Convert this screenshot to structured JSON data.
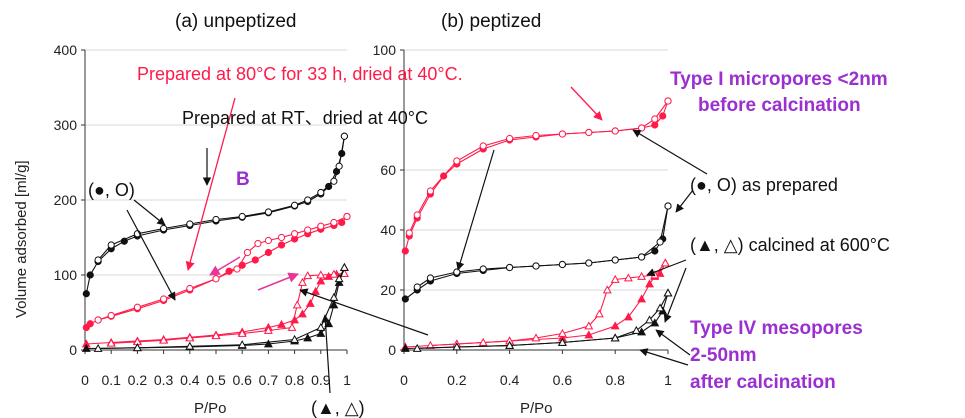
{
  "chart_data": [
    {
      "type": "line",
      "panel_title": "(a) unpeptized",
      "xlabel": "P/Po",
      "ylabel": "Volume adsorbed [ml/g]",
      "xlim": [
        0,
        1
      ],
      "ylim": [
        0,
        400
      ],
      "x_ticks": [
        "0",
        "0.1",
        "0.2",
        "0.3",
        "0.4",
        "0.5",
        "0.6",
        "0.7",
        "0.8",
        "0.9",
        "1"
      ],
      "y_ticks": [
        "0",
        "100",
        "200",
        "300",
        "400"
      ],
      "series": [
        {
          "color": "#111111",
          "branch": "adsorption",
          "marker": "filled-circle",
          "x": [
            0.005,
            0.02,
            0.05,
            0.1,
            0.15,
            0.2,
            0.3,
            0.4,
            0.5,
            0.6,
            0.7,
            0.8,
            0.85,
            0.9,
            0.93,
            0.96,
            0.98,
            0.99
          ],
          "y": [
            75,
            100,
            118,
            135,
            145,
            152,
            160,
            166,
            172,
            177,
            183,
            192,
            198,
            208,
            218,
            238,
            262,
            285
          ]
        },
        {
          "color": "#111111",
          "branch": "desorption",
          "marker": "open-circle",
          "x": [
            0.99,
            0.97,
            0.95,
            0.9,
            0.85,
            0.8,
            0.7,
            0.6,
            0.5,
            0.4,
            0.3,
            0.2,
            0.1,
            0.05
          ],
          "y": [
            285,
            245,
            225,
            210,
            200,
            193,
            184,
            178,
            174,
            168,
            162,
            155,
            140,
            120
          ]
        },
        {
          "color": "#ff1a4a",
          "branch": "adsorption",
          "marker": "filled-circle",
          "x": [
            0.005,
            0.02,
            0.05,
            0.1,
            0.2,
            0.3,
            0.4,
            0.5,
            0.55,
            0.6,
            0.65,
            0.7,
            0.75,
            0.8,
            0.85,
            0.9,
            0.95,
            0.98,
            1.0
          ],
          "y": [
            30,
            35,
            40,
            45,
            55,
            66,
            80,
            95,
            105,
            113,
            120,
            130,
            140,
            148,
            155,
            161,
            166,
            170,
            178
          ]
        },
        {
          "color": "#ff1a4a",
          "branch": "desorption",
          "marker": "open-circle",
          "x": [
            1.0,
            0.95,
            0.9,
            0.85,
            0.8,
            0.75,
            0.7,
            0.66,
            0.62,
            0.58,
            0.5,
            0.4,
            0.3,
            0.2,
            0.1,
            0.05
          ],
          "y": [
            178,
            170,
            165,
            160,
            155,
            150,
            146,
            142,
            130,
            108,
            95,
            82,
            68,
            57,
            46,
            40
          ]
        },
        {
          "color": "#ff1a4a",
          "branch": "adsorption",
          "marker": "filled-triangle",
          "x": [
            0.005,
            0.1,
            0.2,
            0.3,
            0.4,
            0.5,
            0.6,
            0.7,
            0.75,
            0.8,
            0.83,
            0.86,
            0.88,
            0.9,
            0.93,
            0.96,
            0.99
          ],
          "y": [
            8,
            10,
            12,
            14,
            17,
            20,
            24,
            30,
            34,
            40,
            48,
            62,
            78,
            92,
            98,
            101,
            102
          ]
        },
        {
          "color": "#ff1a4a",
          "branch": "desorption",
          "marker": "open-triangle",
          "x": [
            0.99,
            0.95,
            0.9,
            0.85,
            0.83,
            0.81,
            0.79,
            0.7,
            0.6,
            0.5,
            0.4,
            0.3,
            0.2,
            0.1
          ],
          "y": [
            102,
            101,
            100,
            99,
            90,
            60,
            30,
            26,
            22,
            19,
            16,
            13,
            11,
            9
          ]
        },
        {
          "color": "#111111",
          "branch": "adsorption",
          "marker": "filled-triangle",
          "x": [
            0.005,
            0.2,
            0.4,
            0.6,
            0.7,
            0.8,
            0.85,
            0.9,
            0.93,
            0.95,
            0.97,
            0.99
          ],
          "y": [
            2,
            3,
            4,
            6,
            8,
            12,
            16,
            22,
            35,
            60,
            90,
            110
          ]
        },
        {
          "color": "#111111",
          "branch": "desorption",
          "marker": "open-triangle",
          "x": [
            0.99,
            0.97,
            0.95,
            0.9,
            0.8,
            0.6,
            0.4,
            0.2,
            0.05
          ],
          "y": [
            110,
            95,
            70,
            30,
            14,
            7,
            5,
            3,
            2
          ]
        }
      ]
    },
    {
      "type": "line",
      "panel_title": "(b) peptized",
      "xlabel": "P/Po",
      "xlim": [
        0,
        1
      ],
      "ylim": [
        0,
        100
      ],
      "x_ticks": [
        "0",
        "0.2",
        "0.4",
        "0.6",
        "0.8",
        "1"
      ],
      "y_ticks": [
        "0",
        "20",
        "40",
        "60",
        "100"
      ],
      "series": [
        {
          "color": "#ff1a4a",
          "branch": "adsorption",
          "marker": "filled-circle",
          "x": [
            0.005,
            0.02,
            0.05,
            0.1,
            0.15,
            0.2,
            0.3,
            0.4,
            0.5,
            0.6,
            0.7,
            0.8,
            0.9,
            0.95,
            0.98,
            1.0
          ],
          "y": [
            33,
            38,
            44,
            52,
            58,
            62,
            67,
            70,
            71,
            72,
            72.5,
            73,
            74,
            75,
            78,
            83
          ]
        },
        {
          "color": "#ff1a4a",
          "branch": "desorption",
          "marker": "open-circle",
          "x": [
            1.0,
            0.95,
            0.9,
            0.8,
            0.7,
            0.6,
            0.5,
            0.4,
            0.3,
            0.2,
            0.1,
            0.05,
            0.02
          ],
          "y": [
            83,
            77,
            74,
            73,
            72.5,
            72,
            71.5,
            70.5,
            68,
            63,
            53,
            45,
            39
          ]
        },
        {
          "color": "#111111",
          "branch": "adsorption",
          "marker": "filled-circle",
          "x": [
            0.005,
            0.05,
            0.1,
            0.2,
            0.3,
            0.4,
            0.5,
            0.6,
            0.7,
            0.8,
            0.9,
            0.95,
            0.98,
            1.0
          ],
          "y": [
            17,
            20,
            23,
            25.5,
            26.5,
            27.5,
            28,
            28.5,
            29,
            30,
            31,
            33,
            37,
            48
          ]
        },
        {
          "color": "#111111",
          "branch": "desorption",
          "marker": "open-circle",
          "x": [
            1.0,
            0.97,
            0.9,
            0.8,
            0.7,
            0.6,
            0.5,
            0.4,
            0.3,
            0.2,
            0.1,
            0.05
          ],
          "y": [
            48,
            36,
            31,
            30,
            29,
            28.5,
            28,
            27.5,
            27,
            26,
            24,
            21
          ]
        },
        {
          "color": "#ff1a4a",
          "branch": "adsorption",
          "marker": "filled-triangle",
          "x": [
            0.005,
            0.2,
            0.4,
            0.6,
            0.7,
            0.8,
            0.85,
            0.9,
            0.93,
            0.95,
            0.97,
            0.99
          ],
          "y": [
            1,
            2,
            3,
            4,
            5,
            8,
            11,
            17,
            22,
            24.5,
            25.5,
            29
          ]
        },
        {
          "color": "#ff1a4a",
          "branch": "desorption",
          "marker": "open-triangle",
          "x": [
            0.99,
            0.95,
            0.9,
            0.85,
            0.8,
            0.77,
            0.74,
            0.7,
            0.6,
            0.5,
            0.4,
            0.3,
            0.2,
            0.1
          ],
          "y": [
            29,
            25,
            24.5,
            24,
            23.5,
            20,
            12,
            8,
            5.5,
            4,
            3,
            2.5,
            2,
            1.5
          ]
        },
        {
          "color": "#111111",
          "branch": "adsorption",
          "marker": "filled-triangle",
          "x": [
            0.005,
            0.2,
            0.4,
            0.6,
            0.8,
            0.9,
            0.95,
            0.98,
            1.0
          ],
          "y": [
            0.5,
            1,
            1.5,
            2.5,
            4,
            6,
            9,
            13,
            19
          ]
        },
        {
          "color": "#111111",
          "branch": "desorption",
          "marker": "open-triangle",
          "x": [
            1.0,
            0.97,
            0.93,
            0.88,
            0.8,
            0.6,
            0.4,
            0.2,
            0.05
          ],
          "y": [
            19,
            14,
            10,
            6.5,
            4,
            2.5,
            1.5,
            1,
            0.5
          ]
        }
      ]
    }
  ],
  "annotations": {
    "red_prepared_80": "Prepared at  80°C for 33 h, dried at 40°C.",
    "black_prepared_rt": "Prepared at RT、dried at 40°C",
    "label_b": "B",
    "circle_legend_left": "(●, O)",
    "triangle_legend_bottom": "(▲, △)",
    "circle_as_prepared": "(●, O) as prepared",
    "triangle_calcined": "(▲, △) calcined at 600°C",
    "type1_line1": "Type I micropores <2nm",
    "type1_line2": "before calcination",
    "type4_line1": "Type IV mesopores",
    "type4_line2": "2-50nm",
    "type4_line3": "after calcination"
  },
  "colors": {
    "red": "#ff1a4a",
    "black": "#111111",
    "purple": "#9b2fd0",
    "magenta_arrow": "#e8359a"
  }
}
